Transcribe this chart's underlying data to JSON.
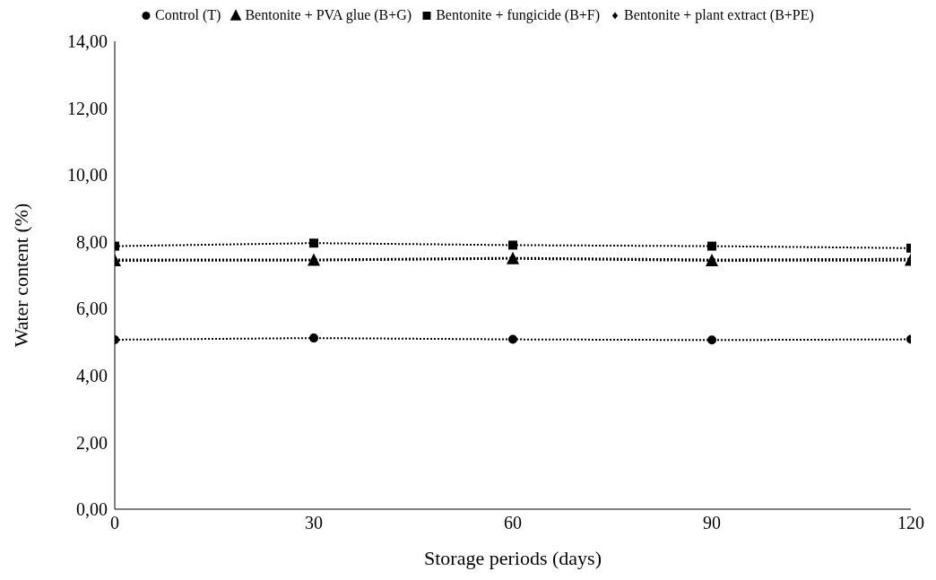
{
  "chart_data": {
    "type": "line",
    "xlabel": "Storage periods (days)",
    "ylabel": "Water content (%)",
    "x": [
      0,
      30,
      60,
      90,
      120
    ],
    "series": [
      {
        "name": "Control (T)",
        "color": "#000000",
        "marker": "circle",
        "values": [
          5.07,
          5.12,
          5.08,
          5.06,
          5.08
        ]
      },
      {
        "name": "Bentonite + PVA glue (B+G)",
        "color": "#000000",
        "marker": "triangle",
        "values": [
          7.43,
          7.44,
          7.49,
          7.43,
          7.44
        ]
      },
      {
        "name": "Bentonite + fungicide (B+F)",
        "color": "#000000",
        "marker": "square",
        "values": [
          7.87,
          7.96,
          7.9,
          7.87,
          7.81
        ]
      },
      {
        "name": "Bentonite + plant extract (B+PE)",
        "color": "#000000",
        "marker": "diamond",
        "values": [
          7.47,
          7.47,
          7.52,
          7.47,
          7.49
        ]
      }
    ],
    "xlim": [
      0,
      120
    ],
    "xticks": [
      0,
      30,
      60,
      90,
      120
    ],
    "ylim": [
      0,
      14
    ],
    "yticks": [
      {
        "value": 0,
        "label": "0,00"
      },
      {
        "value": 2,
        "label": "2,00"
      },
      {
        "value": 4,
        "label": "4,00"
      },
      {
        "value": 6,
        "label": "6,00"
      },
      {
        "value": 8,
        "label": "8,00"
      },
      {
        "value": 10,
        "label": "10,00"
      },
      {
        "value": 12,
        "label": "12,00"
      },
      {
        "value": 14,
        "label": "14,00"
      }
    ],
    "grid": false,
    "legend": "top",
    "line_style": "dotted"
  }
}
